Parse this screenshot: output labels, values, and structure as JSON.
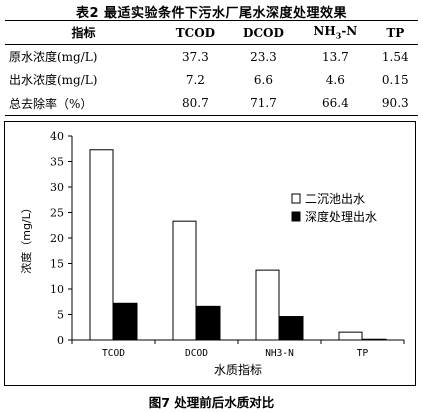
{
  "table": {
    "title": "表2 最适实验条件下污水厂尾水深度处理效果",
    "columns": [
      "指标",
      "TCOD",
      "DCOD",
      "NH3-N",
      "TP"
    ],
    "rows": [
      [
        "原水浓度(mg/L)",
        "37.3",
        "23.3",
        "13.7",
        "1.54"
      ],
      [
        "出水浓度(mg/L)",
        "7.2",
        "6.6",
        "4.6",
        "0.15"
      ],
      [
        "总去除率（%）",
        "80.7",
        "71.7",
        "66.4",
        "90.3"
      ]
    ]
  },
  "chart_data": {
    "type": "bar",
    "categories": [
      "TCOD",
      "DCOD",
      "NH3-N",
      "TP"
    ],
    "series": [
      {
        "name": "二沉池出水",
        "values": [
          37.3,
          23.3,
          13.7,
          1.54
        ],
        "color": "#ffffff"
      },
      {
        "name": "深度处理出水",
        "values": [
          7.2,
          6.6,
          4.6,
          0.15
        ],
        "color": "#000000"
      }
    ],
    "xlabel": "水质指标",
    "ylabel": "浓度（mg/L）",
    "ylim": [
      0,
      40
    ],
    "yticks": [
      0,
      5,
      10,
      15,
      20,
      25,
      30,
      35,
      40
    ],
    "grid": false,
    "legend": "right"
  },
  "figure": {
    "caption": "图7 处理前后水质对比"
  }
}
